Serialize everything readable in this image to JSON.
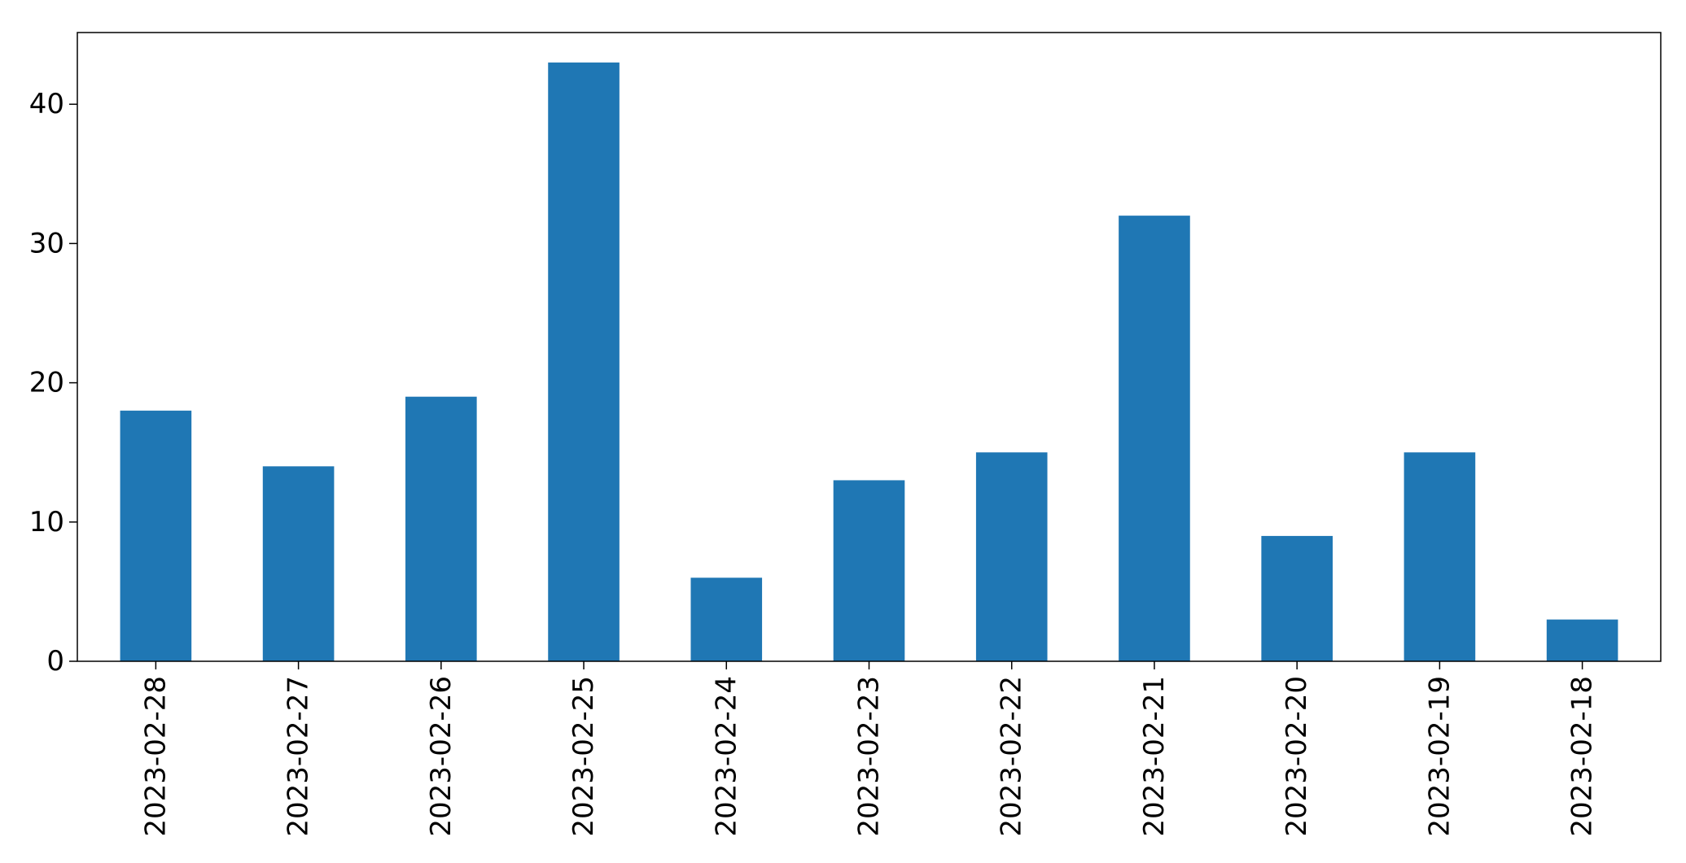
{
  "chart_data": {
    "type": "bar",
    "title": "",
    "xlabel": "",
    "ylabel": "",
    "categories": [
      "2023-02-28",
      "2023-02-27",
      "2023-02-26",
      "2023-02-25",
      "2023-02-24",
      "2023-02-23",
      "2023-02-22",
      "2023-02-21",
      "2023-02-20",
      "2023-02-19",
      "2023-02-18"
    ],
    "values": [
      18,
      14,
      19,
      43,
      6,
      13,
      15,
      32,
      9,
      15,
      3
    ],
    "ylim": [
      0,
      45.15
    ],
    "yticks": [
      0,
      10,
      20,
      30,
      40
    ],
    "grid": false,
    "bar_color": "#1f77b4"
  }
}
